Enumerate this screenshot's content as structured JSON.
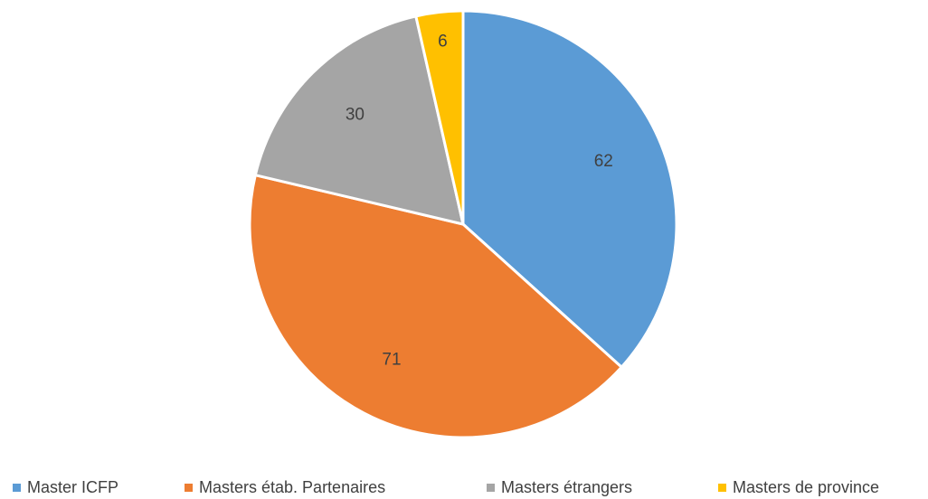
{
  "chart_data": {
    "type": "pie",
    "title": "",
    "categories": [
      "Master ICFP",
      "Masters étab. Partenaires",
      "Masters étrangers",
      "Masters de province"
    ],
    "values": [
      62,
      71,
      30,
      6
    ],
    "data_labels": [
      "62",
      "71",
      "30",
      "6"
    ],
    "colors": [
      "#5B9BD5",
      "#ED7D31",
      "#A5A5A5",
      "#FFC000"
    ],
    "start_angle_deg": 0,
    "direction": "clockwise",
    "legend_placement": "bottom"
  }
}
